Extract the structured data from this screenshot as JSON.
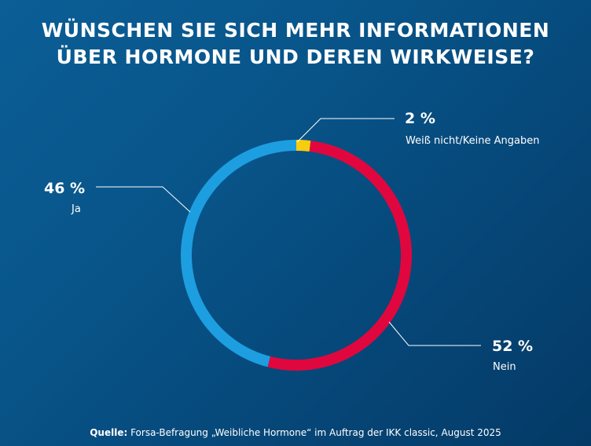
{
  "title_line1": "WÜNSCHEN SIE SICH MEHR INFORMATIONEN",
  "title_line2": "ÜBER HORMONE UND DEREN WIRKWEISE?",
  "chart_data": {
    "type": "pie",
    "style": "donut",
    "title": "WÜNSCHEN SIE SICH MEHR INFORMATIONEN ÜBER HORMONE UND DEREN WIRKWEISE?",
    "slices": [
      {
        "label": "Weiß nicht/Keine Angaben",
        "value": 2,
        "value_label": "2 %",
        "color": "#f7cd0f"
      },
      {
        "label": "Nein",
        "value": 52,
        "value_label": "52 %",
        "color": "#e0073f"
      },
      {
        "label": "Ja",
        "value": 46,
        "value_label": "46 %",
        "color": "#1d9ee1"
      }
    ]
  },
  "footer": {
    "source_label": "Quelle:",
    "source_text": "Forsa-Befragung „Weibliche Hormone“ im Auftrag der IKK classic, August 2025"
  }
}
